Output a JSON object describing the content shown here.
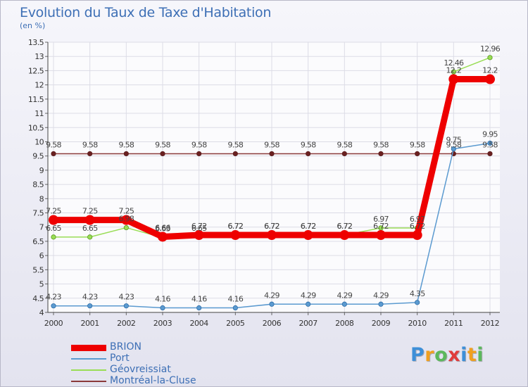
{
  "header": {
    "title": "Evolution du Taux de Taxe d'Habitation",
    "subtitle": "(en %)"
  },
  "logo": {
    "letters": [
      "P",
      "r",
      "o",
      "x",
      "i",
      "t",
      "i"
    ],
    "colors": [
      "#3d8fd8",
      "#f0a020",
      "#5cb85c",
      "#e03c3c",
      "#3d8fd8",
      "#f0a020",
      "#5cb85c"
    ]
  },
  "chart_data": {
    "type": "line",
    "title": "Evolution du Taux de Taxe d'Habitation",
    "ylabel": "(en %)",
    "xlabel": "",
    "x": [
      "2000",
      "2001",
      "2002",
      "2003",
      "2004",
      "2005",
      "2006",
      "2007",
      "2008",
      "2009",
      "2010",
      "2011",
      "2012"
    ],
    "ylim": [
      4,
      13.5
    ],
    "yticks": [
      "4",
      "4.5",
      "5",
      "5.5",
      "6",
      "6.5",
      "7",
      "7.5",
      "8",
      "8.5",
      "9",
      "9.5",
      "10",
      "10.5",
      "11",
      "11.5",
      "12",
      "12.5",
      "13",
      "13.5"
    ],
    "grid": true,
    "legend_position": "bottom-left",
    "series": [
      {
        "name": "BRION",
        "color": "#ee0000",
        "values": [
          7.25,
          7.25,
          7.25,
          6.66,
          6.72,
          6.72,
          6.72,
          6.72,
          6.72,
          6.72,
          6.72,
          12.2,
          12.2
        ],
        "labels": [
          "7.25",
          "7.25",
          "7.25",
          "6.66",
          "6.72",
          "6.72",
          "6.72",
          "6.72",
          "6.72",
          "6.72",
          "6.72",
          "12.2",
          "12.2"
        ]
      },
      {
        "name": "Port",
        "color": "#5b9ad0",
        "values": [
          4.23,
          4.23,
          4.23,
          4.16,
          4.16,
          4.16,
          4.29,
          4.29,
          4.29,
          4.29,
          4.35,
          9.75,
          9.95
        ],
        "labels": [
          "4.23",
          "4.23",
          "4.23",
          "4.16",
          "4.16",
          "4.16",
          "4.29",
          "4.29",
          "4.29",
          "4.29",
          "4.35",
          "9.75",
          "9.95"
        ]
      },
      {
        "name": "Géovreissiat",
        "color": "#99dd55",
        "values": [
          6.65,
          6.65,
          6.98,
          6.63,
          6.65,
          6.72,
          6.72,
          6.72,
          6.72,
          6.97,
          6.97,
          12.46,
          12.96
        ],
        "labels": [
          "6.65",
          "6.65",
          "6.98",
          "6.63",
          "6.65",
          "6.72",
          "6.72",
          "6.72",
          "6.72",
          "6.97",
          "6.97",
          "12.46",
          "12.96"
        ]
      },
      {
        "name": "Montréal-la-Cluse",
        "color": "#8b3a3a",
        "values": [
          9.58,
          9.58,
          9.58,
          9.58,
          9.58,
          9.58,
          9.58,
          9.58,
          9.58,
          9.58,
          9.58,
          9.58,
          9.58
        ],
        "labels": [
          "9.58",
          "9.58",
          "9.58",
          "9.58",
          "9.58",
          "9.58",
          "9.58",
          "9.58",
          "9.58",
          "9.58",
          "9.58",
          "9.58",
          "9.58"
        ]
      }
    ]
  }
}
